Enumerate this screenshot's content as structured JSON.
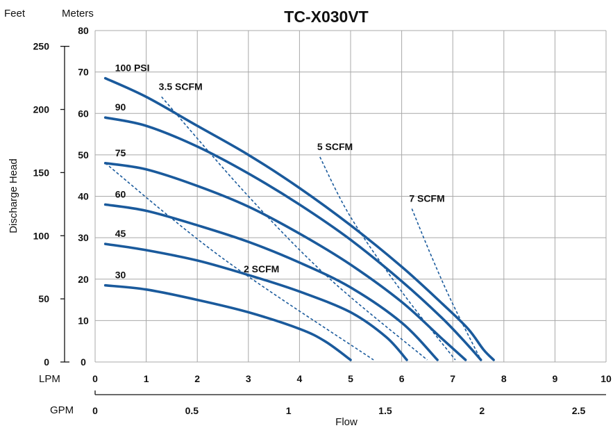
{
  "chart_data": {
    "type": "line",
    "title": "TC-X030VT",
    "left_axis_unit": "Feet",
    "right_axis_unit": "Meters",
    "ylabel": "Discharge Head",
    "xlabel": "Flow",
    "lpm_axis": {
      "label": "LPM",
      "ticks": [
        "0",
        "1",
        "2",
        "3",
        "4",
        "5",
        "6",
        "7",
        "8",
        "9",
        "10"
      ],
      "range": [
        0,
        10
      ]
    },
    "gpm_axis": {
      "label": "GPM",
      "ticks": [
        "0",
        "0.5",
        "1",
        "1.5",
        "2",
        "2.5"
      ],
      "values": [
        0,
        0.5,
        1,
        1.5,
        2,
        2.5
      ]
    },
    "feet_axis": {
      "ticks": [
        "0",
        "50",
        "100",
        "150",
        "200",
        "250"
      ],
      "values": [
        0,
        50,
        100,
        150,
        200,
        250
      ]
    },
    "meters_axis": {
      "ticks": [
        "0",
        "10",
        "20",
        "30",
        "40",
        "50",
        "60",
        "70",
        "80"
      ],
      "range": [
        0,
        80
      ]
    },
    "pressure_series": [
      {
        "name": "100 PSI",
        "x": [
          0.2,
          1,
          2,
          3,
          4,
          5,
          6,
          6.8,
          7.3,
          7.6,
          7.8
        ],
        "y": [
          68.5,
          64,
          57,
          50,
          42,
          33,
          23,
          14,
          8,
          3,
          0.5
        ]
      },
      {
        "name": "90",
        "x": [
          0.2,
          1,
          2,
          3,
          4,
          5,
          6,
          6.8,
          7.3,
          7.55
        ],
        "y": [
          59,
          57,
          52,
          45.5,
          38,
          29.5,
          19.5,
          10.5,
          4,
          0.5
        ]
      },
      {
        "name": "75",
        "x": [
          0.2,
          1,
          2,
          3,
          4,
          5,
          6,
          6.8,
          7.25
        ],
        "y": [
          48,
          46.5,
          42.5,
          37.5,
          31,
          23.5,
          14.5,
          5.5,
          0.5
        ]
      },
      {
        "name": "60",
        "x": [
          0.2,
          1,
          2,
          3,
          4,
          5,
          6,
          6.7
        ],
        "y": [
          38,
          36.5,
          33,
          29,
          24,
          18,
          9.5,
          0.5
        ]
      },
      {
        "name": "45",
        "x": [
          0.2,
          1,
          2,
          3,
          4,
          5,
          5.7,
          6.1
        ],
        "y": [
          28.5,
          27,
          24.5,
          21,
          17,
          12,
          6,
          0.5
        ]
      },
      {
        "name": "30",
        "x": [
          0.2,
          1,
          2,
          3,
          4,
          4.5,
          5.0
        ],
        "y": [
          18.5,
          17.5,
          15,
          12,
          8,
          5,
          0.5
        ]
      }
    ],
    "air_series": [
      {
        "name": "2 SCFM",
        "x": [
          0.2,
          2.5,
          5.45
        ],
        "y": [
          48,
          25,
          0.5
        ]
      },
      {
        "name": "3.5 SCFM",
        "x": [
          1.3,
          3.0,
          4.6,
          6.5
        ],
        "y": [
          64,
          40,
          20,
          0.5
        ]
      },
      {
        "name": "5 SCFM",
        "x": [
          4.4,
          5.0,
          6.0,
          7.05
        ],
        "y": [
          49.5,
          35,
          17,
          0.5
        ]
      },
      {
        "name": "7 SCFM",
        "x": [
          6.2,
          6.6,
          7.0,
          7.55
        ],
        "y": [
          37,
          25,
          14,
          0.5
        ]
      }
    ],
    "grid": true
  }
}
